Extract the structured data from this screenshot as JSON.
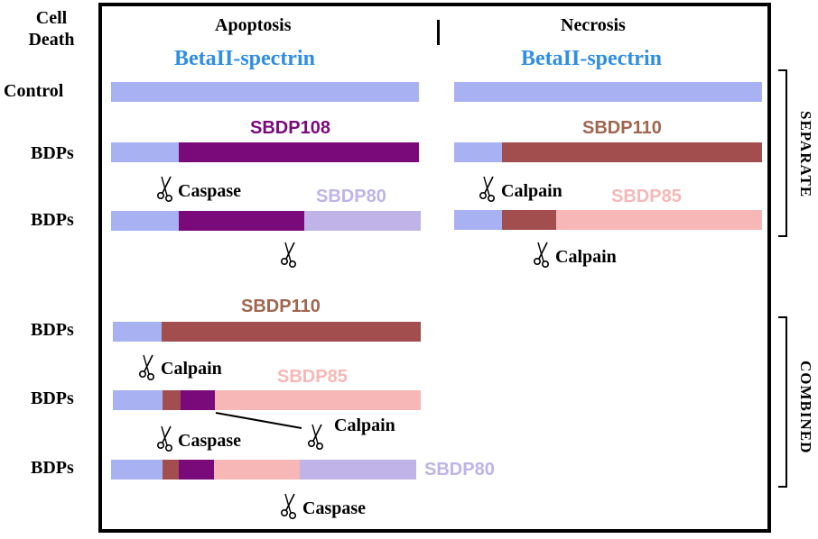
{
  "header": {
    "cell_death": "Cell\nDeath",
    "apoptosis": "Apoptosis",
    "necrosis": "Necrosis",
    "protein_apoptosis": "BetaII-spectrin",
    "protein_necrosis": "BetaII-spectrin"
  },
  "rows": {
    "control": "Control",
    "bdps_1": "BDPs",
    "bdps_2": "BDPs",
    "bdps_3": "BDPs",
    "bdps_4": "BDPs",
    "bdps_5": "BDPs"
  },
  "fragments": {
    "apop_sbdp108": "SBDP108",
    "apop_sbdp80": "SBDP80",
    "nec_sbdp110": "SBDP110",
    "nec_sbdp85": "SBDP85",
    "comb_sbdp110": "SBDP110",
    "comb_sbdp85": "SBDP85",
    "comb_sbdp80": "SBDP80"
  },
  "enzymes": {
    "apop_caspase": "Caspase",
    "nec_calpain_1": "Calpain",
    "nec_calpain_2": "Calpain",
    "comb_calpain_1": "Calpain",
    "comb_caspase": "Caspase",
    "comb_calpain_2": "Calpain",
    "comb_caspase_2": "Caspase"
  },
  "side_labels": {
    "separate": "SEPARATE",
    "combined": "COMBINED"
  },
  "colors": {
    "spectrin": "#a8b2f2",
    "sbdp108": "#7a0a7a",
    "sbdp110": "#a24e4e",
    "sbdp85": "#f7b7b7",
    "sbdp80": "#bfb3e8",
    "label_blue": "#2f8de4"
  }
}
